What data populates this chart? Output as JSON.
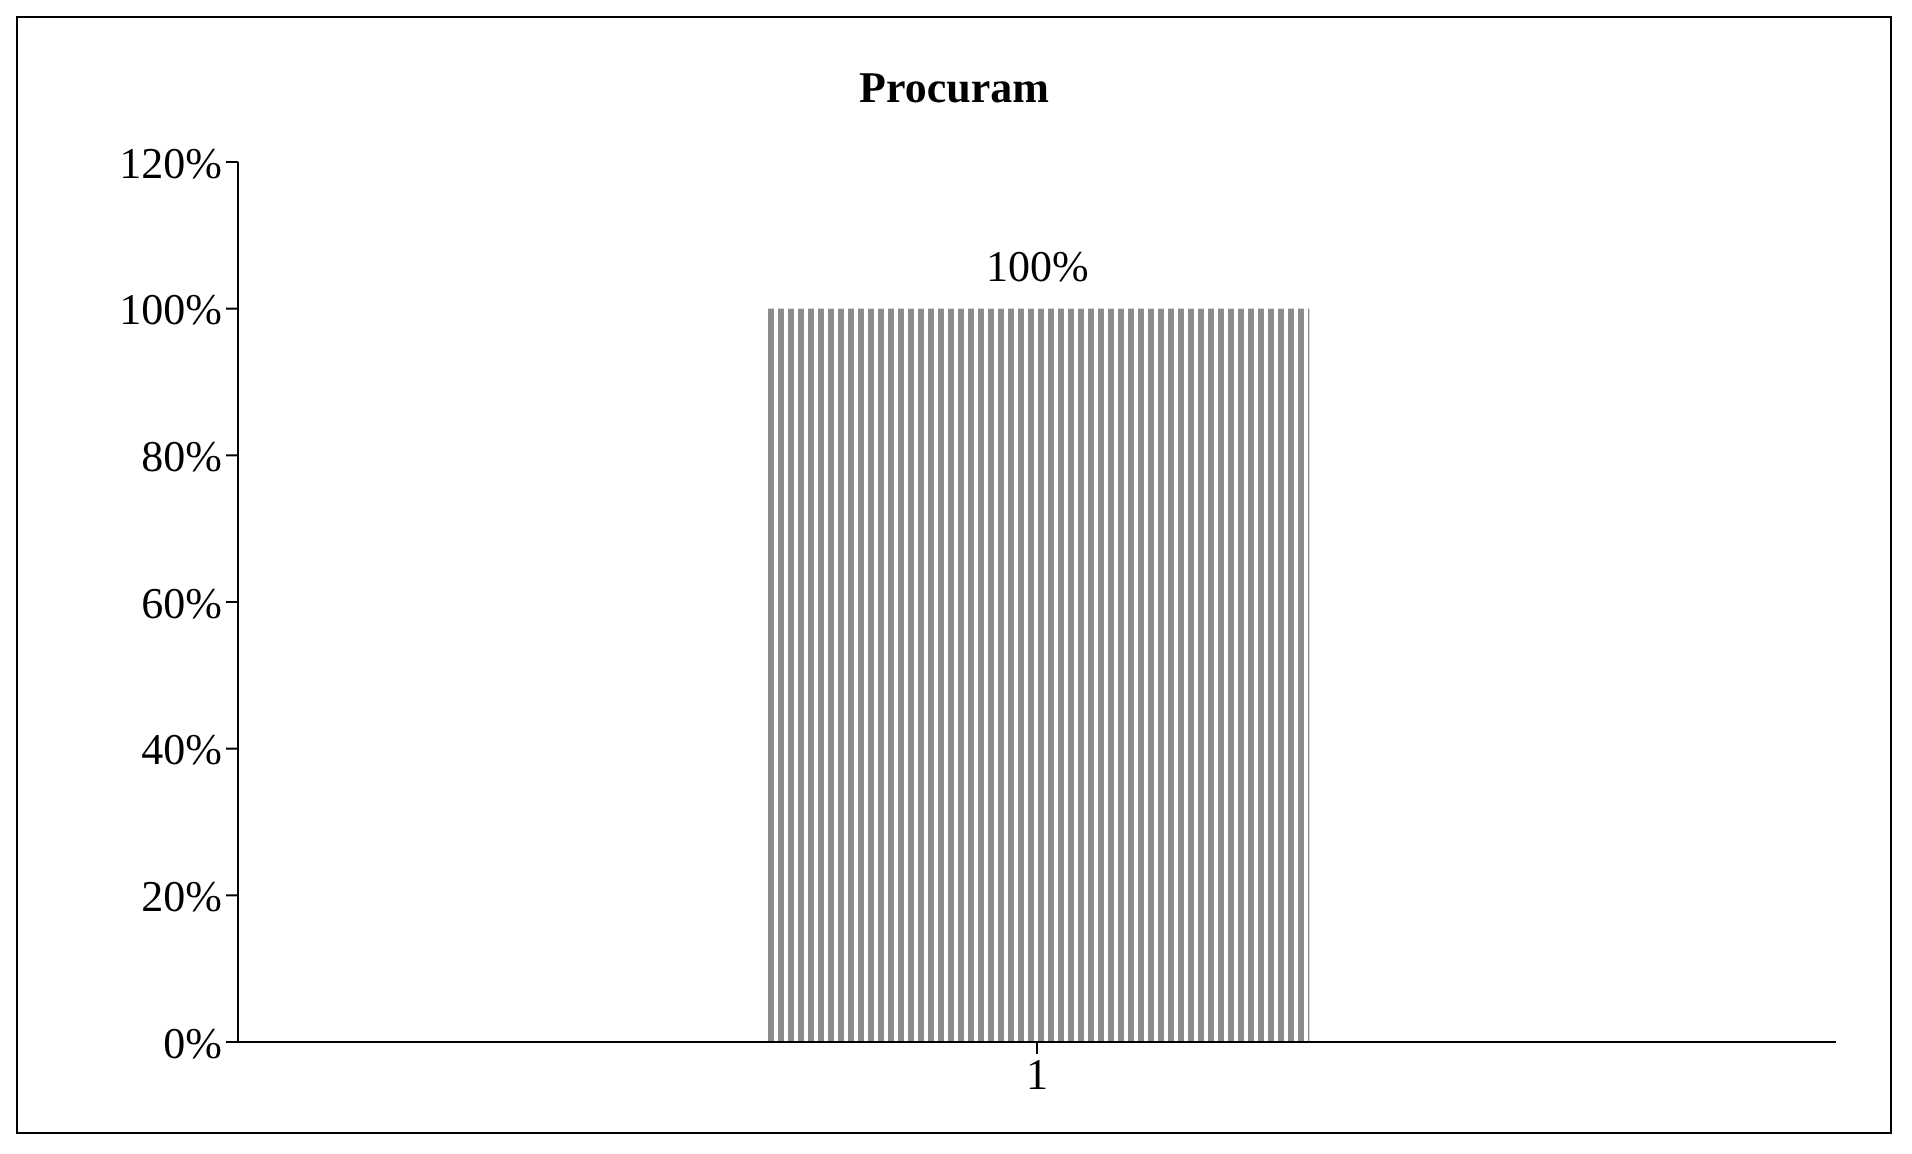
{
  "chart_data": {
    "type": "bar",
    "title": "Procuram",
    "categories": [
      "1"
    ],
    "values": [
      100
    ],
    "color": "#8c8c8c",
    "value_labels": [
      "100%"
    ],
    "ylim": [
      0,
      120
    ],
    "yticks": [
      {
        "value": 0,
        "label": "0%"
      },
      {
        "value": 20,
        "label": "20%"
      },
      {
        "value": 40,
        "label": "40%"
      },
      {
        "value": 60,
        "label": "60%"
      },
      {
        "value": 80,
        "label": "80%"
      },
      {
        "value": 100,
        "label": "100%"
      },
      {
        "value": 120,
        "label": "120%"
      }
    ],
    "grid": false,
    "legend": false
  }
}
